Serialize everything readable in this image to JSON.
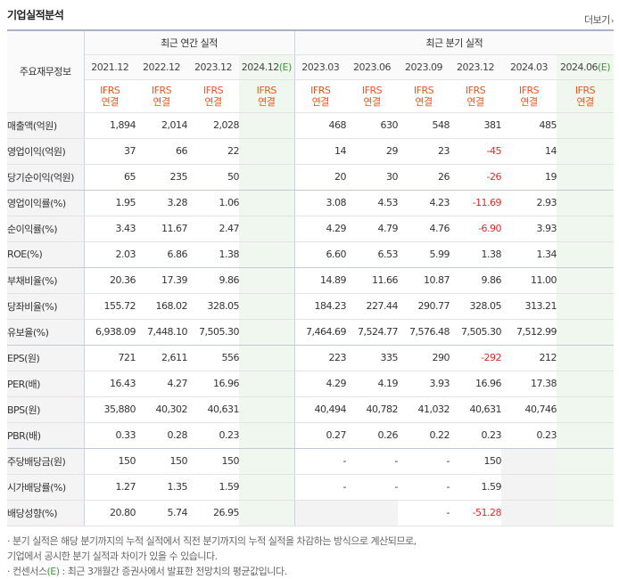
{
  "title": "기업실적분석",
  "more_label": "더보기",
  "header": {
    "corner_label": "주요재무정보",
    "annual_label": "최근 연간 실적",
    "quarter_label": "최근 분기 실적",
    "periods": [
      "2021.12",
      "2022.12",
      "2023.12",
      "2024.12",
      "2023.03",
      "2023.06",
      "2023.09",
      "2023.12",
      "2024.03",
      "2024.06"
    ],
    "estimate_mark": "(E)",
    "ifrs_label": "IFRS",
    "consol_label": "연결"
  },
  "rows": [
    {
      "label": "매출액(억원)",
      "values": [
        "1,894",
        "2,014",
        "2,028",
        "",
        "468",
        "630",
        "548",
        "381",
        "485",
        ""
      ]
    },
    {
      "label": "영업이익(억원)",
      "values": [
        "37",
        "66",
        "22",
        "",
        "14",
        "29",
        "23",
        "-45",
        "14",
        ""
      ]
    },
    {
      "label": "당기순이익(억원)",
      "values": [
        "65",
        "235",
        "50",
        "",
        "20",
        "30",
        "26",
        "-26",
        "19",
        ""
      ]
    },
    {
      "label": "영업이익률(%)",
      "values": [
        "1.95",
        "3.28",
        "1.06",
        "",
        "3.08",
        "4.53",
        "4.23",
        "-11.69",
        "2.93",
        ""
      ]
    },
    {
      "label": "순이익률(%)",
      "values": [
        "3.43",
        "11.67",
        "2.47",
        "",
        "4.29",
        "4.79",
        "4.76",
        "-6.90",
        "3.93",
        ""
      ]
    },
    {
      "label": "ROE(%)",
      "values": [
        "2.03",
        "6.86",
        "1.38",
        "",
        "6.60",
        "6.53",
        "5.99",
        "1.38",
        "1.34",
        ""
      ]
    },
    {
      "label": "부채비율(%)",
      "values": [
        "20.36",
        "17.39",
        "9.86",
        "",
        "14.89",
        "11.66",
        "10.87",
        "9.86",
        "11.00",
        ""
      ]
    },
    {
      "label": "당좌비율(%)",
      "values": [
        "155.72",
        "168.02",
        "328.05",
        "",
        "184.23",
        "227.44",
        "290.77",
        "328.05",
        "313.21",
        ""
      ]
    },
    {
      "label": "유보율(%)",
      "values": [
        "6,938.09",
        "7,448.10",
        "7,505.30",
        "",
        "7,464.69",
        "7,524.77",
        "7,576.48",
        "7,505.30",
        "7,512.99",
        ""
      ]
    },
    {
      "label": "EPS(원)",
      "values": [
        "721",
        "2,611",
        "556",
        "",
        "223",
        "335",
        "290",
        "-292",
        "212",
        ""
      ]
    },
    {
      "label": "PER(배)",
      "values": [
        "16.43",
        "4.27",
        "16.96",
        "",
        "4.29",
        "4.19",
        "3.93",
        "16.96",
        "17.38",
        ""
      ]
    },
    {
      "label": "BPS(원)",
      "values": [
        "35,880",
        "40,302",
        "40,631",
        "",
        "40,494",
        "40,782",
        "41,032",
        "40,631",
        "40,746",
        ""
      ]
    },
    {
      "label": "PBR(배)",
      "values": [
        "0.33",
        "0.28",
        "0.23",
        "",
        "0.27",
        "0.26",
        "0.22",
        "0.23",
        "0.23",
        ""
      ]
    },
    {
      "label": "주당배당금(원)",
      "values": [
        "150",
        "150",
        "150",
        "",
        "-",
        "-",
        "-",
        "150",
        "",
        ""
      ]
    },
    {
      "label": "시가배당률(%)",
      "values": [
        "1.27",
        "1.35",
        "1.59",
        "",
        "-",
        "-",
        "-",
        "1.59",
        "",
        ""
      ]
    },
    {
      "label": "배당성향(%)",
      "values": [
        "20.80",
        "5.74",
        "26.95",
        "",
        "",
        "",
        "-",
        "-51.28",
        "",
        ""
      ]
    }
  ],
  "notes": [
    "· 분기 실적은 해당 분기까지의 누적 실적에서 직전 분기까지의 누적 실적을 차감하는 방식으로 계산되므로,",
    "  기업에서 공시한 분기 실적과 차이가 있을 수 있습니다."
  ],
  "consensus_note": {
    "prefix": "· 컨센서스",
    "mark": "(E)",
    "suffix": " : 최근 3개월간 증권사에서 발표한 전망치의 평균값입니다."
  },
  "colors": {
    "negative": "#e22828",
    "ifrs": "#e9571e",
    "estimate_bg": "#f0f7ee",
    "estimate_mark": "#3d9a36"
  }
}
